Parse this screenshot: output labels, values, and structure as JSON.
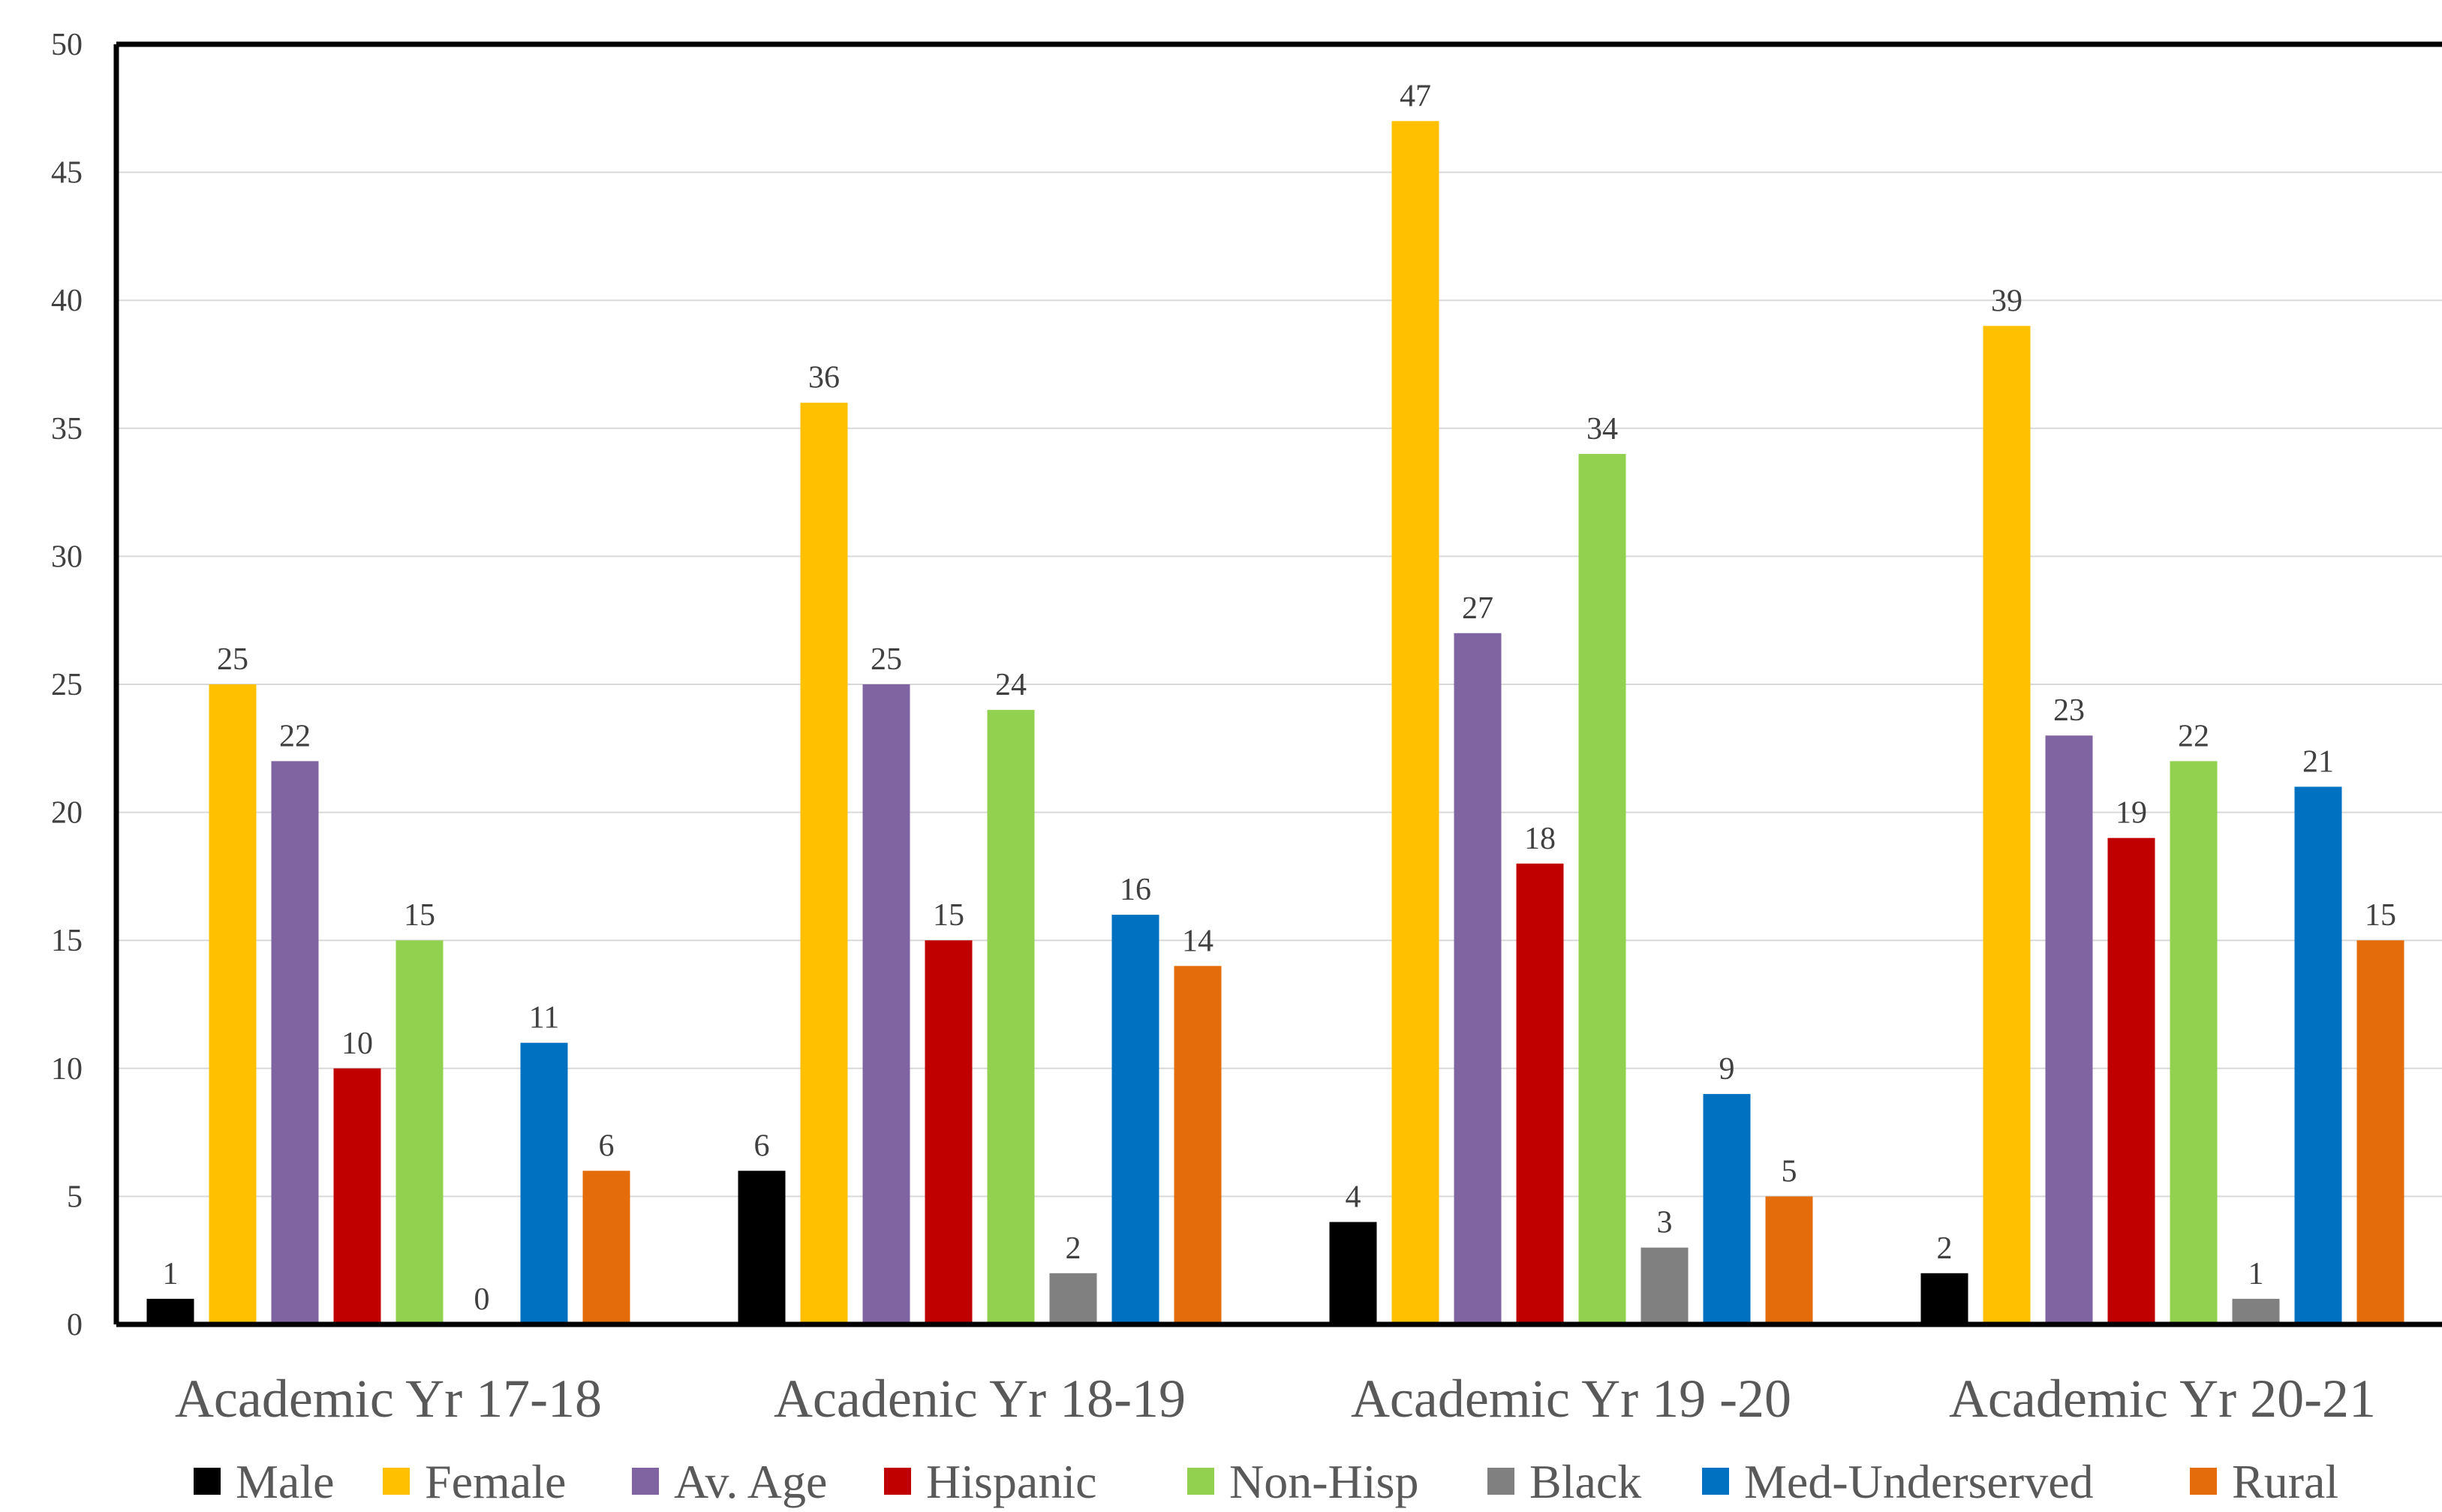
{
  "chart_data": {
    "type": "bar",
    "title": "",
    "xlabel": "",
    "ylabel": "",
    "ylim": [
      0,
      50
    ],
    "yticks": [
      0,
      5,
      10,
      15,
      20,
      25,
      30,
      35,
      40,
      45,
      50
    ],
    "grid": true,
    "legend_position": "bottom",
    "categories": [
      "Academic Yr 17-18",
      "Acadenic Yr 18-19",
      "Academic Yr 19 -20",
      "Academic Yr 20-21"
    ],
    "series": [
      {
        "name": "Male",
        "color": "#000000",
        "values": [
          1,
          6,
          4,
          2
        ]
      },
      {
        "name": "Female",
        "color": "#FFC000",
        "values": [
          25,
          36,
          47,
          39
        ]
      },
      {
        "name": "Av. Age",
        "color": "#8064A2",
        "values": [
          22,
          25,
          27,
          23
        ]
      },
      {
        "name": "Hispanic",
        "color": "#C00000",
        "values": [
          10,
          15,
          18,
          19
        ]
      },
      {
        "name": "Non-Hisp",
        "color": "#92D050",
        "values": [
          15,
          24,
          34,
          22
        ]
      },
      {
        "name": "Black",
        "color": "#808080",
        "values": [
          0,
          2,
          3,
          1
        ]
      },
      {
        "name": "Med-Underserved",
        "color": "#0070C0",
        "values": [
          11,
          16,
          9,
          21
        ]
      },
      {
        "name": "Rural",
        "color": "#E46C0A",
        "values": [
          6,
          14,
          5,
          15
        ]
      }
    ]
  }
}
